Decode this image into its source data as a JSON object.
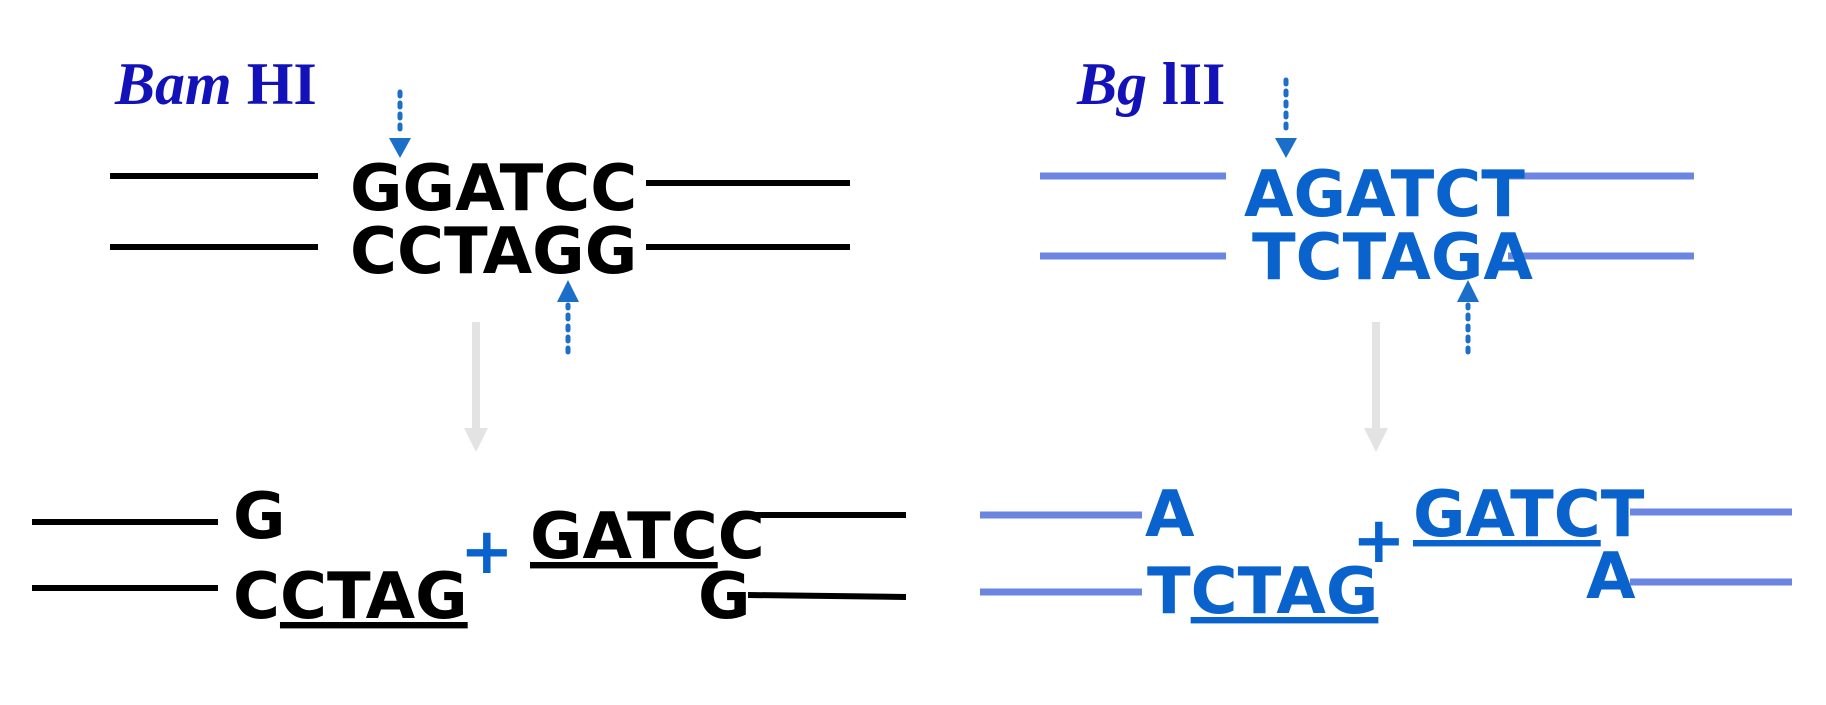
{
  "colors": {
    "black": "#000000",
    "blue_text": "#0a63cc",
    "blue_line": "#6b86e0",
    "title_blue": "#1212b8",
    "dotted_arrow": "#1c6fc9",
    "gray_arrow": "#e3e3e3"
  },
  "bamhi": {
    "name_italic": "Bam",
    "name_rest": " HI",
    "top_strand": "GGATCC",
    "bottom_strand": "CCTAGG",
    "left_fragment": {
      "top": "G",
      "bottom_plain": "C",
      "bottom_underlined": "CTAG"
    },
    "plus": "+",
    "right_fragment": {
      "top_underlined": "GATC",
      "top_plain": "C",
      "bottom": "G"
    }
  },
  "bglii": {
    "name_italic": "Bg",
    "name_rest": " lII",
    "top_strand": "AGATCT",
    "bottom_strand": "TCTAGA",
    "left_fragment": {
      "top": "A",
      "bottom_plain": "T",
      "bottom_underlined": "CTAG"
    },
    "plus": "+",
    "right_fragment": {
      "top_underlined": "GATC",
      "top_plain": "T",
      "bottom": "A"
    }
  }
}
